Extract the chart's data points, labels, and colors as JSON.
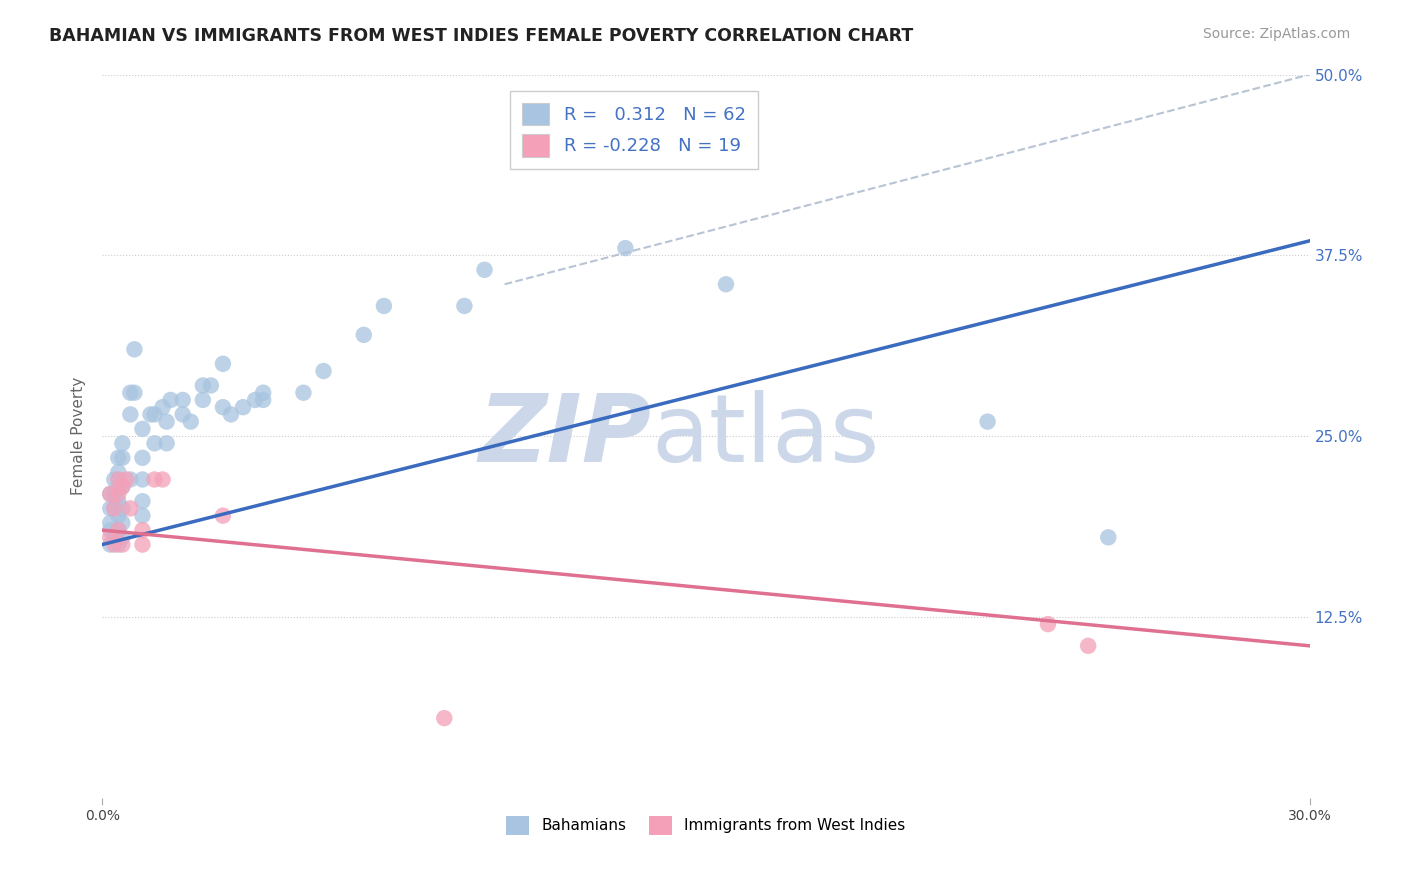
{
  "title": "BAHAMIAN VS IMMIGRANTS FROM WEST INDIES FEMALE POVERTY CORRELATION CHART",
  "source": "Source: ZipAtlas.com",
  "ylabel": "Female Poverty",
  "xlim": [
    0.0,
    0.3
  ],
  "ylim": [
    0.0,
    0.5
  ],
  "r_blue": 0.312,
  "n_blue": 62,
  "r_pink": -0.228,
  "n_pink": 19,
  "blue_color": "#a8c4e0",
  "pink_color": "#f4a0b8",
  "blue_line_color": "#3a6bbf",
  "pink_line_color": "#e07090",
  "dash_line_color": "#b8c4d4",
  "watermark_color": "#ccd8ea",
  "blue_points_x": [
    0.002,
    0.002,
    0.002,
    0.002,
    0.002,
    0.003,
    0.003,
    0.003,
    0.003,
    0.004,
    0.004,
    0.004,
    0.004,
    0.004,
    0.004,
    0.004,
    0.005,
    0.005,
    0.005,
    0.005,
    0.005,
    0.005,
    0.007,
    0.007,
    0.007,
    0.008,
    0.008,
    0.01,
    0.01,
    0.01,
    0.01,
    0.01,
    0.012,
    0.013,
    0.013,
    0.015,
    0.016,
    0.016,
    0.017,
    0.02,
    0.02,
    0.022,
    0.025,
    0.025,
    0.027,
    0.03,
    0.03,
    0.032,
    0.035,
    0.038,
    0.04,
    0.04,
    0.05,
    0.055,
    0.065,
    0.07,
    0.09,
    0.095,
    0.13,
    0.155,
    0.22,
    0.25
  ],
  "blue_points_y": [
    0.175,
    0.185,
    0.19,
    0.2,
    0.21,
    0.18,
    0.2,
    0.21,
    0.22,
    0.175,
    0.185,
    0.195,
    0.205,
    0.215,
    0.225,
    0.235,
    0.18,
    0.19,
    0.2,
    0.215,
    0.235,
    0.245,
    0.22,
    0.265,
    0.28,
    0.28,
    0.31,
    0.195,
    0.205,
    0.22,
    0.235,
    0.255,
    0.265,
    0.245,
    0.265,
    0.27,
    0.245,
    0.26,
    0.275,
    0.265,
    0.275,
    0.26,
    0.275,
    0.285,
    0.285,
    0.27,
    0.3,
    0.265,
    0.27,
    0.275,
    0.275,
    0.28,
    0.28,
    0.295,
    0.32,
    0.34,
    0.34,
    0.365,
    0.38,
    0.355,
    0.26,
    0.18
  ],
  "pink_points_x": [
    0.002,
    0.002,
    0.003,
    0.003,
    0.004,
    0.004,
    0.004,
    0.005,
    0.005,
    0.006,
    0.007,
    0.01,
    0.01,
    0.013,
    0.015,
    0.03,
    0.085,
    0.235,
    0.245
  ],
  "pink_points_y": [
    0.18,
    0.21,
    0.175,
    0.2,
    0.185,
    0.21,
    0.22,
    0.175,
    0.215,
    0.22,
    0.2,
    0.175,
    0.185,
    0.22,
    0.22,
    0.195,
    0.055,
    0.12,
    0.105
  ],
  "blue_line_x": [
    0.0,
    0.3
  ],
  "blue_line_y": [
    0.175,
    0.385
  ],
  "pink_line_x": [
    0.0,
    0.3
  ],
  "pink_line_y": [
    0.185,
    0.105
  ],
  "dash_line_x": [
    0.1,
    0.3
  ],
  "dash_line_y": [
    0.355,
    0.5
  ]
}
